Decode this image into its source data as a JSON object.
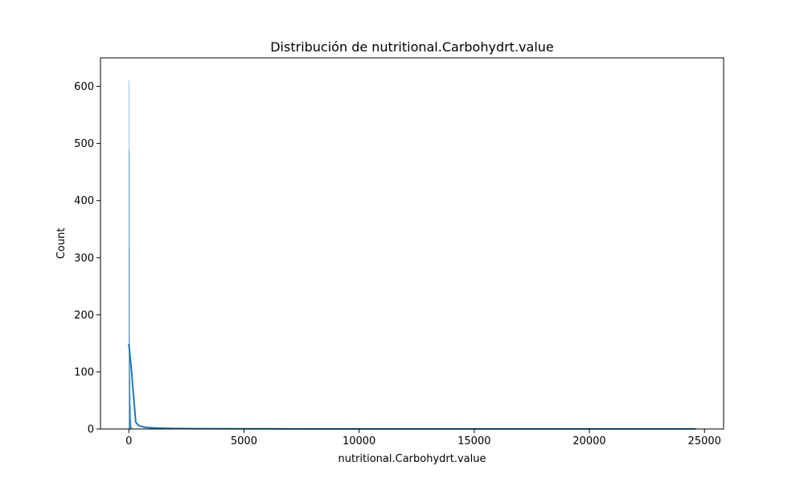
{
  "chart_data": {
    "type": "bar",
    "subtype": "histogram-with-kde",
    "title": "Distribución de nutritional.Carbohydrt.value",
    "xlabel": "nutritional.Carbohydrt.value",
    "ylabel": "Count",
    "xlim": [
      -1230,
      25830
    ],
    "ylim": [
      0,
      650
    ],
    "x_ticks": [
      0,
      5000,
      10000,
      15000,
      20000,
      25000
    ],
    "x_tick_labels": [
      "0",
      "5000",
      "10000",
      "15000",
      "20000",
      "25000"
    ],
    "y_ticks": [
      0,
      100,
      200,
      300,
      400,
      500,
      600
    ],
    "y_tick_labels": [
      "0",
      "100",
      "200",
      "300",
      "400",
      "500",
      "600"
    ],
    "grid": false,
    "bar_color": "#1f77b4",
    "line_color": "#1f77b4",
    "bins": [
      {
        "x0": 0,
        "x1": 10,
        "count": 610
      },
      {
        "x0": 10,
        "x1": 20,
        "count": 490
      },
      {
        "x0": 20,
        "x1": 30,
        "count": 316
      },
      {
        "x0": 30,
        "x1": 40,
        "count": 145
      },
      {
        "x0": 40,
        "x1": 50,
        "count": 90
      },
      {
        "x0": 50,
        "x1": 60,
        "count": 60
      },
      {
        "x0": 60,
        "x1": 70,
        "count": 40
      },
      {
        "x0": 70,
        "x1": 80,
        "count": 25
      },
      {
        "x0": 80,
        "x1": 90,
        "count": 15
      },
      {
        "x0": 90,
        "x1": 100,
        "count": 8
      },
      {
        "x0": 100,
        "x1": 120,
        "count": 4
      },
      {
        "x0": 120,
        "x1": 150,
        "count": 2
      }
    ],
    "kde": {
      "x": [
        0,
        100,
        200,
        300,
        400,
        500,
        700,
        1000,
        1500,
        2000,
        3000,
        5000,
        10000,
        15000,
        20000,
        24600
      ],
      "y": [
        148,
        110,
        60,
        12,
        7,
        5,
        3,
        2,
        1.2,
        0.8,
        0.5,
        0.3,
        0.2,
        0.2,
        0.2,
        0.2
      ]
    }
  }
}
